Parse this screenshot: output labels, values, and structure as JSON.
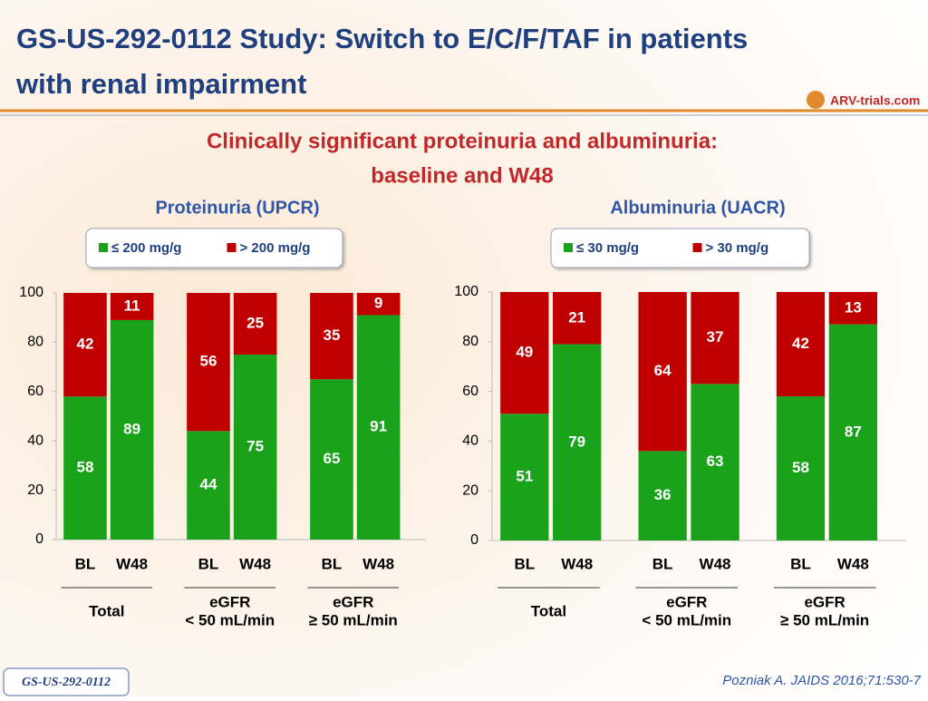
{
  "title": [
    "GS-US-292-0112 Study: Switch to E/C/F/TAF in patients",
    "with renal impairment"
  ],
  "logo": "ARV-trials.com",
  "subtitle": [
    "Clinically significant proteinuria and albuminuria:",
    "baseline and W48"
  ],
  "footer": "GS-US-292-0112",
  "citation": "Pozniak A. JAIDS 2016;71:530-7",
  "chart_data": [
    {
      "type": "stacked_bar",
      "title": "Proteinuria (UPCR)",
      "categories": [
        "BL",
        "W48",
        "BL",
        "W48",
        "BL",
        "W48"
      ],
      "groups": [
        [
          "Total"
        ],
        [
          "eGFR",
          "< 50 mL/min"
        ],
        [
          "eGFR",
          "≥ 50 mL/min"
        ]
      ],
      "series": [
        {
          "name": "≤ 200 mg/g",
          "color": "#1aa31a",
          "values": [
            58,
            89,
            44,
            75,
            65,
            91
          ]
        },
        {
          "name": "> 200 mg/g",
          "color": "#c00000",
          "values": [
            42,
            11,
            56,
            25,
            35,
            9
          ]
        }
      ],
      "ylim": [
        0,
        100
      ],
      "yticks": [
        0,
        20,
        40,
        60,
        80,
        100
      ]
    },
    {
      "type": "stacked_bar",
      "title": "Albuminuria (UACR)",
      "categories": [
        "BL",
        "W48",
        "BL",
        "W48",
        "BL",
        "W48"
      ],
      "groups": [
        [
          "Total"
        ],
        [
          "eGFR",
          "< 50 mL/min"
        ],
        [
          "eGFR",
          "≥ 50 mL/min"
        ]
      ],
      "series": [
        {
          "name": "≤ 30 mg/g",
          "color": "#1aa31a",
          "values": [
            51,
            79,
            36,
            63,
            58,
            87
          ]
        },
        {
          "name": "> 30 mg/g",
          "color": "#c00000",
          "values": [
            49,
            21,
            64,
            37,
            42,
            13
          ]
        }
      ],
      "ylim": [
        0,
        100
      ],
      "yticks": [
        0,
        20,
        40,
        60,
        80,
        100
      ]
    }
  ]
}
